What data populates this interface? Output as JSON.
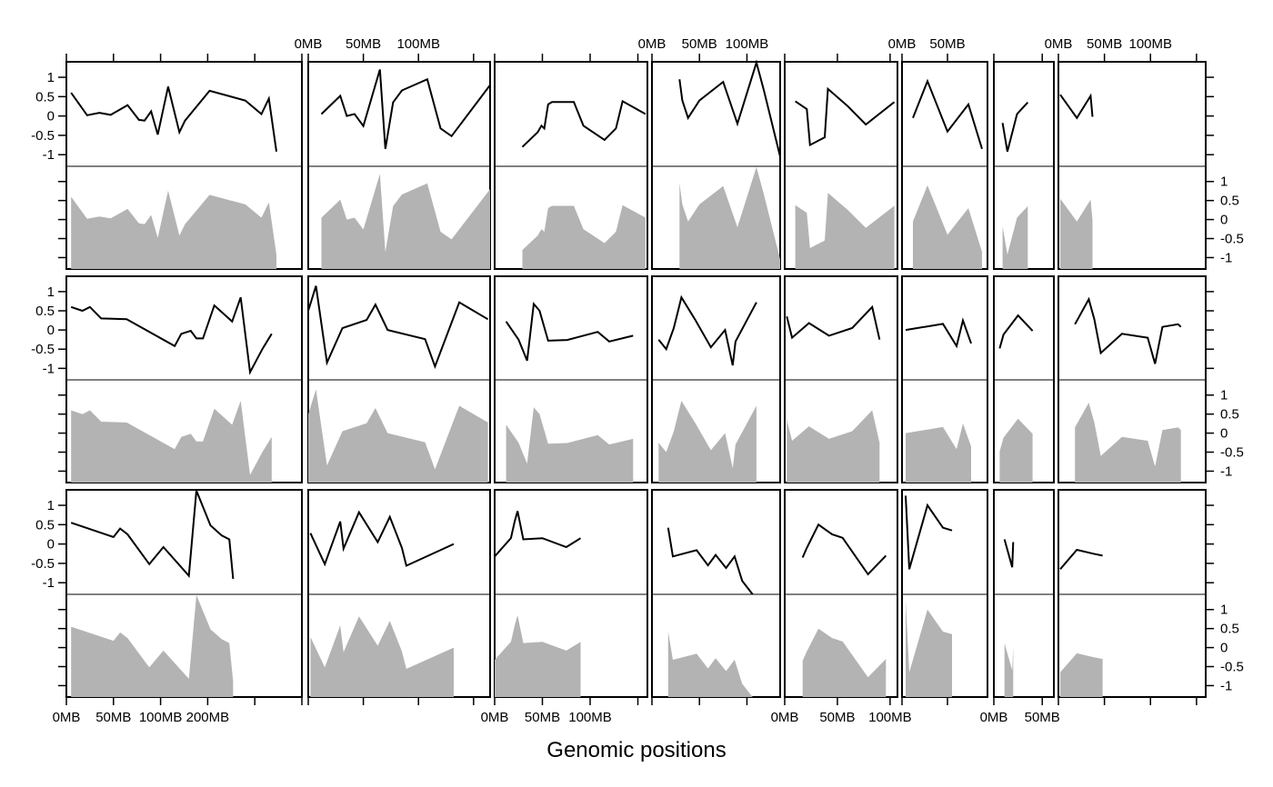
{
  "chart_data": {
    "type": "line",
    "layout": "8 columns x 3 rows of panels; each panel shows a line plot (upper half) and a filled area plot (lower half) of the same series against genomic position",
    "xlabel": "Genomic positions",
    "x_unit": "MB",
    "y_ticks": [
      "1",
      "0.5",
      "0",
      "-0.5",
      "-1"
    ],
    "ylim": [
      -1.3,
      1.4
    ],
    "x_tick_labels": [
      [
        "0MB",
        "50MB",
        "100MB",
        "200MB"
      ],
      [
        "0MB",
        "50MB",
        "100MB"
      ],
      [
        "0MB",
        "50MB",
        "100MB"
      ],
      [
        "0MB",
        "50MB",
        "100MB"
      ],
      [
        "0MB",
        "50MB",
        "100MB"
      ],
      [
        "0MB",
        "50MB"
      ],
      [
        "0MB",
        "50MB"
      ],
      [
        "0MB",
        "50MB",
        "100MB"
      ]
    ],
    "x_ticks": [
      [
        0,
        50,
        100,
        150,
        200,
        250
      ],
      [
        0,
        50,
        100,
        150
      ],
      [
        0,
        50,
        100,
        150
      ],
      [
        0,
        50,
        100,
        150
      ],
      [
        0,
        50,
        100
      ],
      [
        0,
        50
      ],
      [
        0,
        50
      ],
      [
        0,
        50,
        100,
        150
      ]
    ],
    "columns": [
      {
        "xlim": [
          0,
          250
        ],
        "rows": [
          {
            "x": [
              5,
              22,
              35,
              47,
              65,
              77,
              83,
              90,
              97,
              108,
              120,
              126,
              152,
              190,
              207,
              215,
              223
            ],
            "y": [
              0.6,
              0.02,
              0.08,
              0.03,
              0.28,
              -0.1,
              -0.12,
              0.12,
              -0.48,
              0.76,
              -0.42,
              -0.12,
              0.65,
              0.4,
              0.05,
              0.45,
              -0.92
            ]
          },
          {
            "x": [
              5,
              17,
              25,
              37,
              64,
              115,
              122,
              132,
              138,
              145,
              157,
              167,
              176,
              185,
              195,
              208,
              218
            ],
            "y": [
              0.6,
              0.5,
              0.6,
              0.3,
              0.28,
              -0.42,
              -0.1,
              -0.02,
              -0.22,
              -0.22,
              0.64,
              0.42,
              0.22,
              0.85,
              -1.1,
              -0.5,
              -0.1
            ]
          },
          {
            "x": [
              5,
              50,
              57,
              65,
              88,
              103,
              130,
              138,
              153,
              165,
              173,
              177
            ],
            "y": [
              0.55,
              0.18,
              0.4,
              0.25,
              -0.52,
              -0.08,
              -0.82,
              1.38,
              0.48,
              0.22,
              0.12,
              -0.9
            ]
          }
        ]
      },
      {
        "xlim": [
          0,
          165
        ],
        "rows": [
          {
            "x": [
              12,
              29,
              35,
              42,
              50,
              65,
              70,
              77,
              85,
              108,
              120,
              130,
              165
            ],
            "y": [
              0.05,
              0.52,
              0.0,
              0.05,
              -0.26,
              1.2,
              -0.85,
              0.35,
              0.66,
              0.95,
              -0.32,
              -0.52,
              0.8
            ]
          },
          {
            "x": [
              0,
              7,
              17,
              31,
              53,
              61,
              72,
              106,
              115,
              137,
              163
            ],
            "y": [
              0.5,
              1.15,
              -0.85,
              0.05,
              0.26,
              0.66,
              0.0,
              -0.24,
              -0.95,
              0.72,
              0.28
            ]
          },
          {
            "x": [
              2,
              15,
              29,
              32,
              46,
              63,
              74,
              85,
              89,
              132
            ],
            "y": [
              0.28,
              -0.52,
              0.58,
              -0.12,
              0.82,
              0.05,
              0.7,
              -0.1,
              -0.56,
              0.0
            ]
          }
        ]
      },
      {
        "xlim": [
          0,
          160
        ],
        "rows": [
          {
            "x": [
              29,
              45,
              49,
              52,
              56,
              60,
              83,
              93,
              115,
              127,
              134,
              158
            ],
            "y": [
              -0.8,
              -0.42,
              -0.25,
              -0.32,
              0.3,
              0.36,
              0.36,
              -0.25,
              -0.62,
              -0.32,
              0.38,
              0.05
            ]
          },
          {
            "x": [
              12,
              25,
              34,
              41,
              47,
              56,
              76,
              108,
              120,
              145
            ],
            "y": [
              0.22,
              -0.25,
              -0.8,
              0.68,
              0.5,
              -0.28,
              -0.26,
              -0.05,
              -0.3,
              -0.15
            ]
          },
          {
            "x": [
              0,
              17,
              21,
              24,
              30,
              50,
              75,
              90
            ],
            "y": [
              -0.32,
              0.15,
              0.58,
              0.85,
              0.12,
              0.15,
              -0.08,
              0.15
            ]
          }
        ]
      },
      {
        "xlim": [
          0,
          135
        ],
        "rows": [
          {
            "x": [
              29,
              32,
              38,
              50,
              75,
              90,
              110,
              118,
              135
            ],
            "y": [
              0.95,
              0.4,
              -0.05,
              0.4,
              0.88,
              -0.2,
              1.38,
              0.65,
              -1.05
            ]
          },
          {
            "x": [
              7,
              15,
              23,
              31,
              46,
              62,
              77,
              85,
              88,
              110
            ],
            "y": [
              -0.25,
              -0.5,
              0.05,
              0.85,
              0.25,
              -0.45,
              0.0,
              -0.92,
              -0.3,
              0.72
            ]
          },
          {
            "x": [
              17,
              22,
              47,
              59,
              67,
              78,
              87,
              95,
              106
            ],
            "y": [
              0.42,
              -0.32,
              -0.16,
              -0.55,
              -0.28,
              -0.62,
              -0.32,
              -0.95,
              -1.3
            ]
          }
        ]
      },
      {
        "xlim": [
          0,
          107
        ],
        "rows": [
          {
            "x": [
              10,
              21,
              24,
              38,
              41,
              60,
              77,
              104
            ],
            "y": [
              0.38,
              0.18,
              -0.75,
              -0.55,
              0.7,
              0.25,
              -0.22,
              0.36
            ]
          },
          {
            "x": [
              2,
              7,
              23,
              42,
              64,
              83,
              90
            ],
            "y": [
              0.35,
              -0.2,
              0.18,
              -0.15,
              0.05,
              0.6,
              -0.25
            ]
          },
          {
            "x": [
              17,
              21,
              32,
              45,
              55,
              79,
              96
            ],
            "y": [
              -0.35,
              -0.1,
              0.5,
              0.25,
              0.16,
              -0.78,
              -0.3
            ]
          }
        ]
      },
      {
        "xlim": [
          0,
          94
        ],
        "rows": [
          {
            "x": [
              12,
              28,
              50,
              73,
              88
            ],
            "y": [
              -0.05,
              0.9,
              -0.4,
              0.3,
              -0.85
            ]
          },
          {
            "x": [
              4,
              45,
              60,
              67,
              76
            ],
            "y": [
              0.0,
              0.16,
              -0.42,
              0.25,
              -0.35
            ]
          },
          {
            "x": [
              4,
              8,
              28,
              45,
              55
            ],
            "y": [
              1.25,
              -0.65,
              1.0,
              0.42,
              0.35
            ]
          }
        ]
      },
      {
        "xlim": [
          0,
          62
        ],
        "rows": [
          {
            "x": [
              9,
              14,
              24,
              35
            ],
            "y": [
              -0.18,
              -0.92,
              0.05,
              0.35
            ]
          },
          {
            "x": [
              6,
              10,
              25,
              40
            ],
            "y": [
              -0.48,
              -0.12,
              0.38,
              -0.02
            ]
          },
          {
            "x": [
              11,
              19,
              20
            ],
            "y": [
              0.12,
              -0.6,
              0.05
            ]
          }
        ]
      },
      {
        "xlim": [
          0,
          160
        ],
        "rows": [
          {
            "x": [
              2,
              20,
              35,
              37
            ],
            "y": [
              0.55,
              -0.05,
              0.52,
              -0.02
            ]
          },
          {
            "x": [
              18,
              33,
              39,
              46,
              69,
              97,
              105,
              113,
              130,
              133
            ],
            "y": [
              0.15,
              0.8,
              0.28,
              -0.6,
              -0.1,
              -0.2,
              -0.88,
              0.08,
              0.15,
              0.08
            ]
          },
          {
            "x": [
              2,
              20,
              38,
              48
            ],
            "y": [
              -0.65,
              -0.15,
              -0.25,
              -0.3
            ]
          }
        ]
      }
    ],
    "colors": {
      "line": "#000000",
      "area_fill": "#b3b3b3",
      "frame": "#000000"
    }
  }
}
